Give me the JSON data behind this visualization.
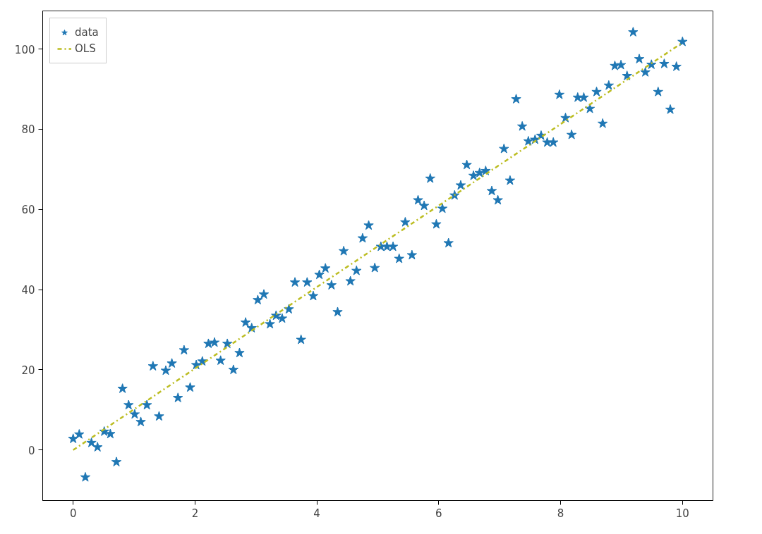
{
  "chart_data": {
    "type": "scatter",
    "xlim": [
      -0.5,
      10.5
    ],
    "ylim": [
      -12.6,
      109.5
    ],
    "xticks": [
      0,
      2,
      4,
      6,
      8,
      10
    ],
    "yticks": [
      0,
      20,
      40,
      60,
      80,
      100
    ],
    "grid": false,
    "legend": "top left",
    "series": [
      {
        "name": "data",
        "marker": "star",
        "color": "#1f77b4",
        "x": [
          0,
          0.1,
          0.2,
          0.3,
          0.4,
          0.51,
          0.61,
          0.71,
          0.81,
          0.91,
          1.01,
          1.11,
          1.21,
          1.31,
          1.41,
          1.52,
          1.62,
          1.72,
          1.82,
          1.92,
          2.02,
          2.12,
          2.22,
          2.32,
          2.42,
          2.53,
          2.63,
          2.73,
          2.83,
          2.93,
          3.03,
          3.13,
          3.23,
          3.33,
          3.43,
          3.54,
          3.64,
          3.74,
          3.84,
          3.94,
          4.04,
          4.14,
          4.24,
          4.34,
          4.44,
          4.55,
          4.65,
          4.75,
          4.85,
          4.95,
          5.05,
          5.15,
          5.25,
          5.35,
          5.45,
          5.56,
          5.66,
          5.76,
          5.86,
          5.96,
          6.06,
          6.16,
          6.26,
          6.36,
          6.46,
          6.57,
          6.67,
          6.77,
          6.87,
          6.97,
          7.07,
          7.17,
          7.27,
          7.37,
          7.47,
          7.58,
          7.68,
          7.78,
          7.88,
          7.98,
          8.08,
          8.18,
          8.28,
          8.38,
          8.48,
          8.59,
          8.69,
          8.79,
          8.89,
          8.99,
          9.09,
          9.19,
          9.29,
          9.39,
          9.49,
          9.6,
          9.7,
          9.8,
          9.9,
          10
        ],
        "values": [
          2.8,
          3.9,
          -6.8,
          1.8,
          0.7,
          4.6,
          4.0,
          -3.0,
          15.3,
          11.2,
          8.9,
          7.0,
          11.2,
          20.9,
          8.4,
          19.8,
          21.6,
          13.0,
          24.9,
          15.6,
          21.2,
          22.1,
          26.5,
          26.8,
          22.3,
          26.5,
          20.0,
          24.2,
          31.8,
          30.4,
          37.4,
          38.8,
          31.4,
          33.5,
          32.8,
          35.1,
          41.8,
          27.5,
          41.8,
          38.4,
          43.7,
          45.3,
          41.1,
          34.4,
          49.6,
          42.1,
          44.7,
          52.8,
          56.0,
          45.4,
          50.7,
          50.7,
          50.7,
          47.7,
          56.8,
          48.6,
          62.3,
          60.9,
          67.7,
          56.3,
          60.2,
          51.6,
          63.5,
          66.0,
          71.1,
          68.4,
          69.1,
          69.6,
          64.6,
          62.3,
          75.1,
          67.2,
          87.5,
          80.7,
          77.0,
          77.4,
          78.4,
          76.7,
          76.7,
          88.6,
          82.8,
          78.6,
          87.9,
          87.9,
          85.1,
          89.3,
          81.4,
          90.9,
          95.8,
          96.0,
          93.3,
          104.2,
          97.5,
          94.2,
          96.1,
          89.3,
          96.3,
          84.9,
          95.6,
          101.8
        ]
      },
      {
        "name": "OLS",
        "type": "line",
        "line_style": "dashdot",
        "color": "#bcbd22",
        "x": [
          0,
          10
        ],
        "values": [
          0.0,
          101.6
        ]
      }
    ]
  }
}
